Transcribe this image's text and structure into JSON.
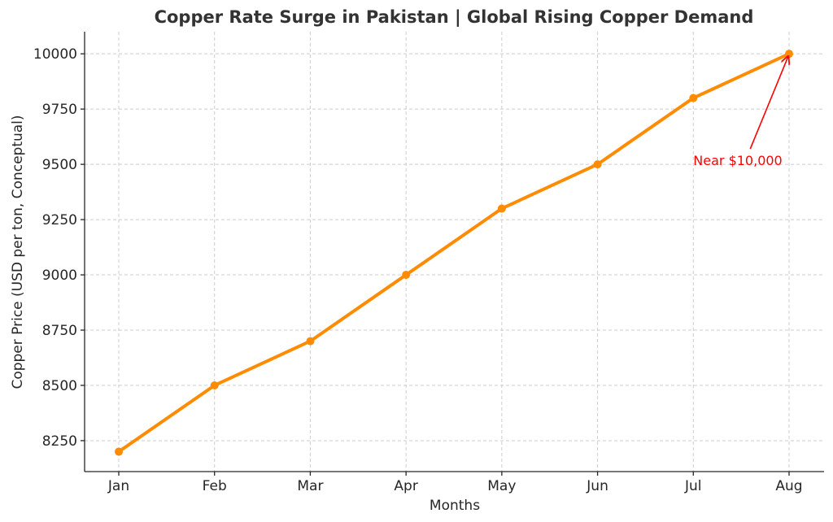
{
  "chart_data": {
    "type": "line",
    "title": "Copper Rate Surge in Pakistan | Global Rising Copper Demand",
    "xlabel": "Months",
    "ylabel": "Copper Price (USD per ton, Conceptual)",
    "categories": [
      "Jan",
      "Feb",
      "Mar",
      "Apr",
      "May",
      "Jun",
      "Jul",
      "Aug"
    ],
    "series": [
      {
        "values": [
          8200,
          8500,
          8700,
          9000,
          9300,
          9500,
          9800,
          10000
        ],
        "color": "#ff8c00"
      }
    ],
    "ylim": [
      8110,
      10100
    ],
    "yticks": [
      8250,
      8500,
      8750,
      9000,
      9250,
      9500,
      9750,
      10000
    ],
    "grid": true,
    "annotation": {
      "text": "Near $10,000",
      "target_category": "Aug",
      "target_value": 10000,
      "text_anchor_category": "Jul",
      "text_anchor_value": 9500,
      "color": "#ff0000"
    }
  }
}
